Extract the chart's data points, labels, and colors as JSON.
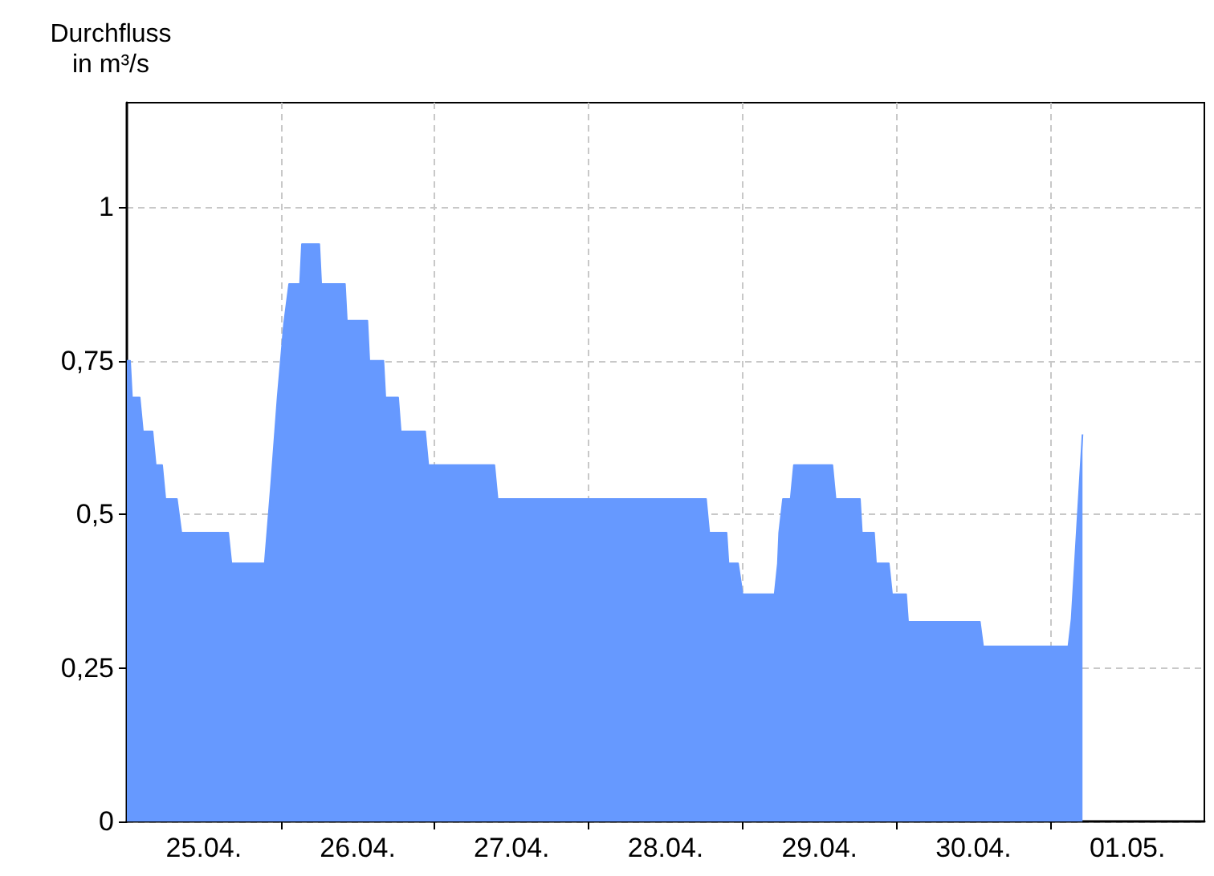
{
  "chart_data": {
    "type": "area",
    "ylabel": "Durchfluss\nin m³/s",
    "x": [
      "--04-25T00:00",
      "--04-25T00:30",
      "--04-25T00:48",
      "--04-25T02:00",
      "--04-25T02:30",
      "--04-25T04:00",
      "--04-25T04:30",
      "--04-25T05:30",
      "--04-25T06:00",
      "--04-25T07:48",
      "--04-25T08:30",
      "--04-25T15:48",
      "--04-25T16:18",
      "--04-25T21:30",
      "--04-25T22:30",
      "--04-25T23:30",
      "--04-26T00:00",
      "--04-26T00:30",
      "--04-26T01:18",
      "--04-26T03:00",
      "--04-26T03:18",
      "--04-26T06:00",
      "--04-26T06:18",
      "--04-26T10:00",
      "--04-26T10:18",
      "--04-26T13:30",
      "--04-26T13:48",
      "--04-26T16:00",
      "--04-26T16:18",
      "--04-26T18:18",
      "--04-26T18:42",
      "--04-26T22:30",
      "--04-26T23:00",
      "--04-27T09:18",
      "--04-27T09:48",
      "--04-28T18:18",
      "--04-28T18:48",
      "--04-28T21:30",
      "--04-28T21:48",
      "--04-28T23:18",
      "--04-29T00:00",
      "--04-29T05:00",
      "--04-29T05:30",
      "--04-29T05:42",
      "--04-29T06:18",
      "--04-29T07:30",
      "--04-29T08:00",
      "--04-29T14:00",
      "--04-29T14:30",
      "--04-29T18:18",
      "--04-29T18:36",
      "--04-29T20:30",
      "--04-29T20:48",
      "--04-29T22:48",
      "--04-29T23:18",
      "--04-30T01:30",
      "--04-30T01:48",
      "--04-30T13:00",
      "--04-30T13:30",
      "--05-01T02:48",
      "--05-01T03:18",
      "--05-01T05:00"
    ],
    "series": [
      {
        "color": "#6699ff",
        "values": [
          0.75,
          0.75,
          0.69,
          0.69,
          0.635,
          0.635,
          0.58,
          0.58,
          0.525,
          0.525,
          0.47,
          0.47,
          0.42,
          0.42,
          0.55,
          0.69,
          0.75,
          0.81,
          0.875,
          0.875,
          0.94,
          0.94,
          0.875,
          0.875,
          0.815,
          0.815,
          0.75,
          0.75,
          0.69,
          0.69,
          0.635,
          0.635,
          0.58,
          0.58,
          0.525,
          0.525,
          0.47,
          0.47,
          0.42,
          0.42,
          0.37,
          0.37,
          0.42,
          0.47,
          0.525,
          0.525,
          0.58,
          0.58,
          0.525,
          0.525,
          0.47,
          0.47,
          0.42,
          0.42,
          0.37,
          0.37,
          0.325,
          0.325,
          0.285,
          0.285,
          0.33,
          0.63
        ]
      }
    ],
    "xlim": [
      "--04-25T00:00",
      "--05-02T00:00"
    ],
    "xticks": [
      {
        "value": "--04-25T12:00",
        "label": "25.04."
      },
      {
        "value": "--04-26T00:00",
        "label": null
      },
      {
        "value": "--04-26T12:00",
        "label": "26.04."
      },
      {
        "value": "--04-27T00:00",
        "label": null
      },
      {
        "value": "--04-27T12:00",
        "label": "27.04."
      },
      {
        "value": "--04-28T00:00",
        "label": null
      },
      {
        "value": "--04-28T12:00",
        "label": "28.04."
      },
      {
        "value": "--04-29T00:00",
        "label": null
      },
      {
        "value": "--04-29T12:00",
        "label": "29.04."
      },
      {
        "value": "--04-30T00:00",
        "label": null
      },
      {
        "value": "--04-30T12:00",
        "label": "30.04."
      },
      {
        "value": "--05-01T00:00",
        "label": null
      },
      {
        "value": "--05-01T12:00",
        "label": "01.05."
      }
    ],
    "ylim": [
      0,
      1.17
    ],
    "yticks": [
      {
        "value": 0,
        "label": "0"
      },
      {
        "value": 0.25,
        "label": "0,25"
      },
      {
        "value": 0.5,
        "label": "0,5"
      },
      {
        "value": 0.75,
        "label": "0,75"
      },
      {
        "value": 1,
        "label": "1"
      }
    ],
    "grid": true,
    "marker": "none"
  }
}
